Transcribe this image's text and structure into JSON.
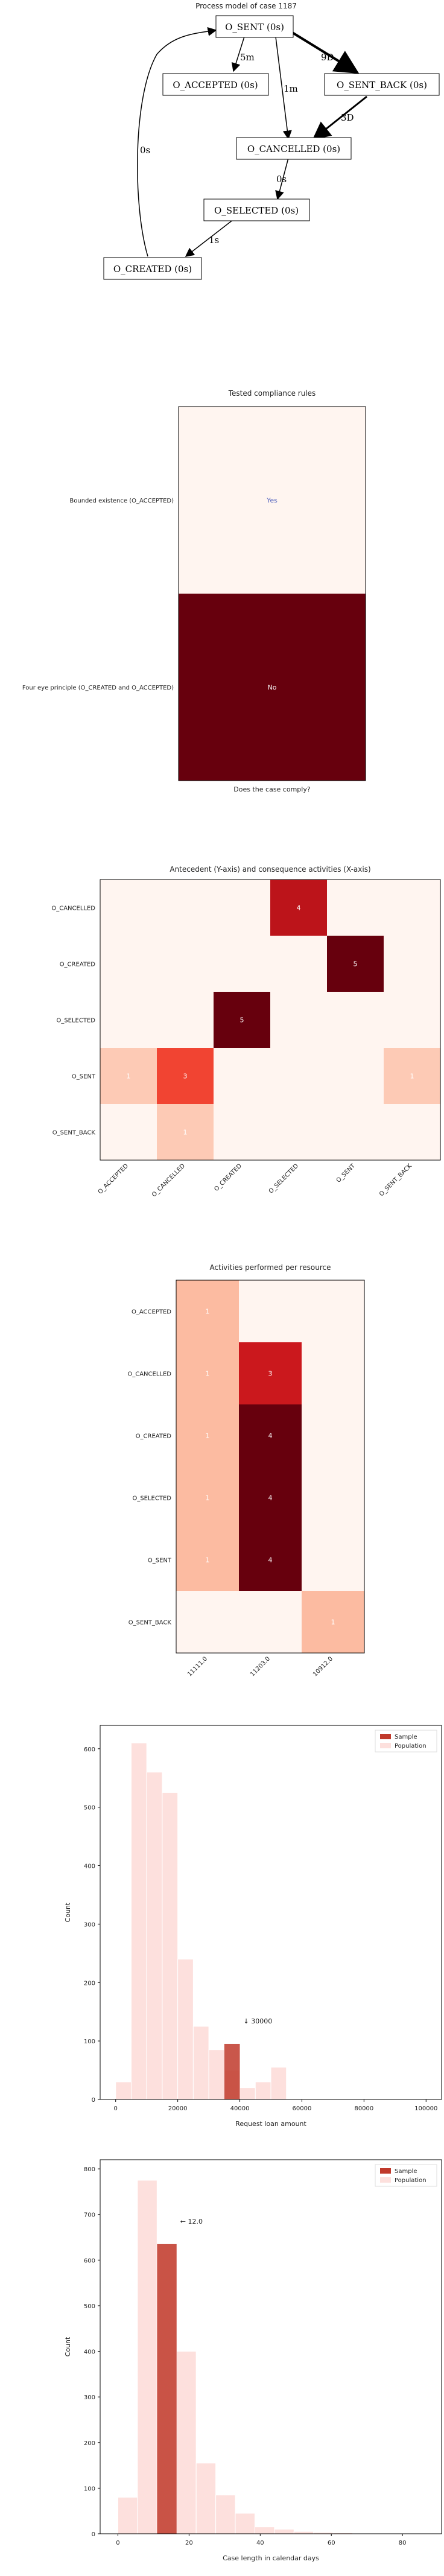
{
  "process_model": {
    "title": "Process model of case 1187",
    "nodes": {
      "o_sent": "O_SENT (0s)",
      "o_accepted": "O_ACCEPTED (0s)",
      "o_sent_back": "O_SENT_BACK (0s)",
      "o_cancelled": "O_CANCELLED (0s)",
      "o_selected": "O_SELECTED (0s)",
      "o_created": "O_CREATED (0s)"
    },
    "edges": {
      "sent_accepted": "5m",
      "sent_cancelled": "1m",
      "sent_sentback": "9D",
      "sentback_cancelled": "3D",
      "cancelled_selected": "0s",
      "selected_created": "1s",
      "created_sent": "0s"
    }
  },
  "chart_data": [
    {
      "type": "heatmap",
      "title": "Tested compliance rules",
      "xlabel": "Does the case comply?",
      "rows": [
        "Bounded existence (O_ACCEPTED)",
        "Four eye principle (O_CREATED and O_ACCEPTED)"
      ],
      "values": [
        "Yes",
        "No"
      ],
      "colors": [
        "#fff5f0",
        "#67000d"
      ]
    },
    {
      "type": "heatmap",
      "title": "Antecedent (Y-axis) and consequence activities (X-axis)",
      "rows": [
        "O_CANCELLED",
        "O_CREATED",
        "O_SELECTED",
        "O_SENT",
        "O_SENT_BACK"
      ],
      "cols": [
        "O_ACCEPTED",
        "O_CANCELLED",
        "O_CREATED",
        "O_SELECTED",
        "O_SENT",
        "O_SENT_BACK"
      ],
      "values": [
        [
          0,
          0,
          0,
          4,
          0,
          0
        ],
        [
          0,
          0,
          0,
          0,
          5,
          0
        ],
        [
          0,
          0,
          5,
          0,
          0,
          0
        ],
        [
          1,
          3,
          0,
          0,
          0,
          1
        ],
        [
          0,
          1,
          0,
          0,
          0,
          0
        ]
      ],
      "vmax": 5
    },
    {
      "type": "heatmap",
      "title": "Activities performed per resource",
      "rows": [
        "O_ACCEPTED",
        "O_CANCELLED",
        "O_CREATED",
        "O_SELECTED",
        "O_SENT",
        "O_SENT_BACK"
      ],
      "cols": [
        "11111.0",
        "11203.0",
        "10912.0"
      ],
      "values": [
        [
          1,
          0,
          0
        ],
        [
          1,
          3,
          0
        ],
        [
          1,
          4,
          0
        ],
        [
          1,
          4,
          0
        ],
        [
          1,
          4,
          0
        ],
        [
          0,
          0,
          1
        ]
      ],
      "vmax": 4
    },
    {
      "type": "bar",
      "title": "",
      "xlabel": "Request loan amount",
      "ylabel": "Count",
      "xlim": [
        -5000,
        105000
      ],
      "ylim": [
        0,
        640
      ],
      "xticks": [
        0,
        20000,
        40000,
        60000,
        80000,
        100000
      ],
      "yticks": [
        0,
        100,
        200,
        300,
        400,
        500,
        600
      ],
      "legend": [
        "Sample",
        "Population"
      ],
      "legend_position": "top-right",
      "annotation": "↓ 30000",
      "bin_width": 5000,
      "population": {
        "name": "Population",
        "bins": [
          0,
          5000,
          10000,
          15000,
          20000,
          25000,
          30000,
          35000,
          40000,
          45000,
          50000
        ],
        "counts": [
          30,
          610,
          560,
          525,
          240,
          125,
          85,
          50,
          20,
          30,
          55
        ],
        "color": "#fde0dd"
      },
      "sample": {
        "name": "Sample",
        "bins": [
          35000
        ],
        "counts": [
          95
        ],
        "color": "#c0392b"
      }
    },
    {
      "type": "bar",
      "title": "",
      "xlabel": "Case length in calendar days",
      "ylabel": "Count",
      "xlim": [
        -5,
        91
      ],
      "ylim": [
        0,
        820
      ],
      "xticks": [
        0,
        20,
        40,
        60,
        80
      ],
      "yticks": [
        0,
        100,
        200,
        300,
        400,
        500,
        600,
        700,
        800
      ],
      "legend": [
        "Sample",
        "Population"
      ],
      "legend_position": "top-right",
      "annotation": "← 12.0",
      "bin_width": 5.5,
      "population": {
        "name": "Population",
        "bins": [
          0,
          5.5,
          11,
          16.5,
          22,
          27.5,
          33,
          38.5,
          44,
          49.5,
          55,
          60.5,
          66
        ],
        "counts": [
          80,
          775,
          635,
          400,
          155,
          85,
          45,
          15,
          10,
          5,
          3,
          2,
          1
        ],
        "color": "#fde0dd"
      },
      "sample": {
        "name": "Sample",
        "bins": [
          11
        ],
        "counts": [
          635
        ],
        "color": "#c0392b"
      }
    }
  ]
}
